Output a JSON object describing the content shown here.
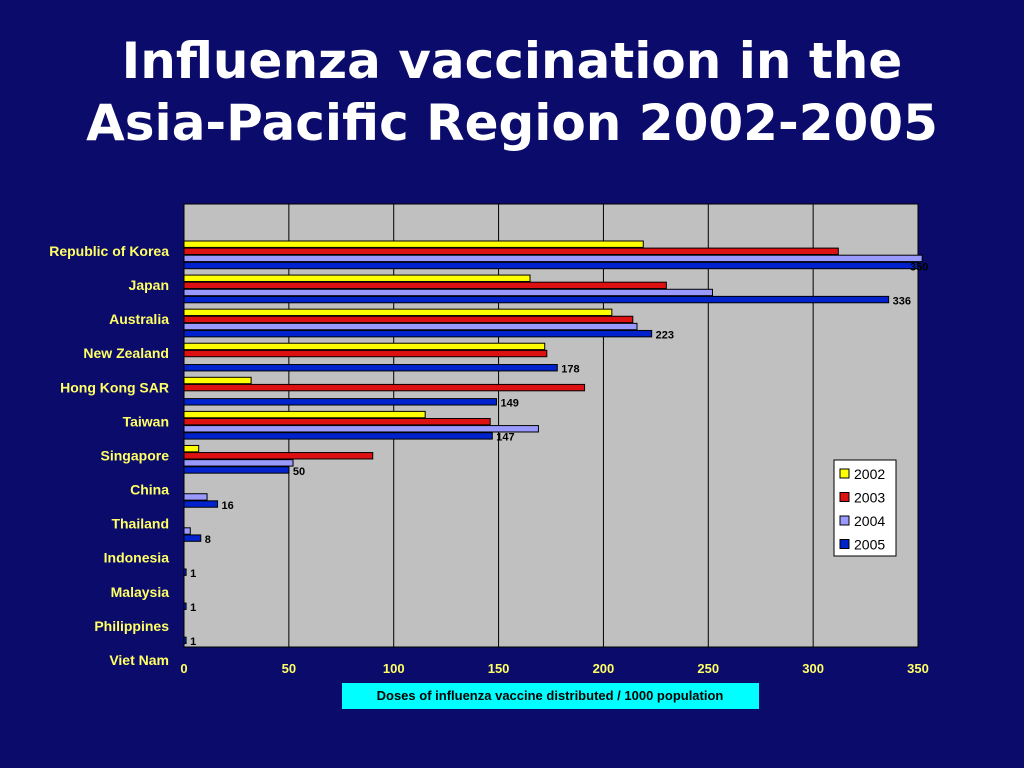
{
  "chart_data": {
    "type": "bar",
    "orientation": "horizontal",
    "title": [
      "Influenza vaccination in the",
      "Asia-Pacific Region 2002-2005"
    ],
    "xlabel": "Doses of influenza vaccine distributed / 1000 population",
    "ylabel": "",
    "xlim": [
      0,
      350
    ],
    "xticks": [
      0,
      50,
      100,
      150,
      200,
      250,
      300,
      350
    ],
    "grid": true,
    "legend_position": "right",
    "categories": [
      "Republic of Korea",
      "Japan",
      "Australia",
      "New Zealand",
      "Hong Kong SAR",
      "Taiwan",
      "Singapore",
      "China",
      "Thailand",
      "Indonesia",
      "Malaysia",
      "Philippines",
      "Viet Nam"
    ],
    "series": [
      {
        "name": "2002",
        "color": "#ffff00",
        "values": [
          219,
          165,
          204,
          172,
          32,
          115,
          7,
          null,
          null,
          null,
          null,
          null,
          null
        ]
      },
      {
        "name": "2003",
        "color": "#dd1111",
        "values": [
          312,
          230,
          214,
          173,
          191,
          146,
          90,
          null,
          null,
          null,
          null,
          null,
          null
        ]
      },
      {
        "name": "2004",
        "color": "#9999ff",
        "values": [
          352,
          252,
          216,
          null,
          null,
          169,
          52,
          11,
          3,
          null,
          null,
          null,
          null
        ]
      },
      {
        "name": "2005",
        "color": "#0022cc",
        "values": [
          350,
          336,
          223,
          178,
          149,
          147,
          50,
          16,
          8,
          1,
          1,
          1,
          null
        ]
      }
    ],
    "data_labels": [
      "350",
      "336",
      "223",
      "178",
      "149",
      "147",
      "50",
      "16",
      "8",
      "1",
      "1",
      "1",
      ""
    ],
    "colors": {
      "background": "#0b0b6b",
      "plot_area": "#c0c0c0",
      "text": "#ffff66",
      "xlabel_box": "#00ffff"
    }
  }
}
